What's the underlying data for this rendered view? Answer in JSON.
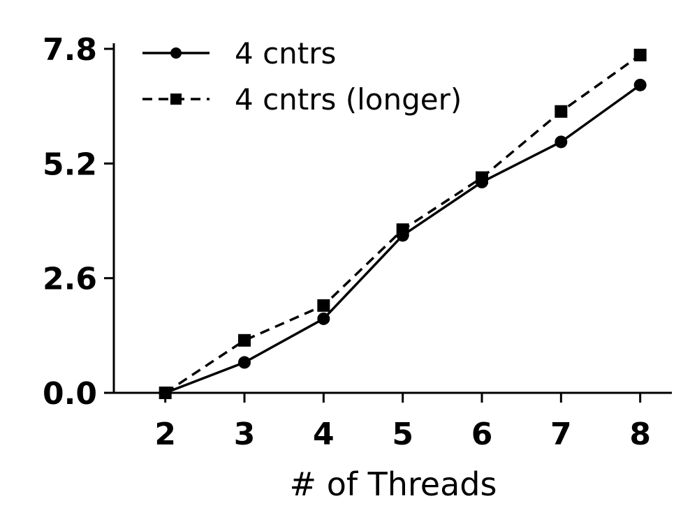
{
  "chart_data": {
    "type": "line",
    "title": "",
    "xlabel": "# of Threads",
    "ylabel": "",
    "x": [
      2,
      3,
      4,
      5,
      6,
      7,
      8
    ],
    "xlim": [
      1.35,
      8.4
    ],
    "ylim": [
      0.0,
      7.8
    ],
    "yticks": [
      "0.0",
      "2.6",
      "5.2",
      "7.8"
    ],
    "xticks": [
      "2",
      "3",
      "4",
      "5",
      "6",
      "7",
      "8"
    ],
    "legend_position": "top-left",
    "grid": false,
    "series": [
      {
        "name": "4 cntrs",
        "style": "solid",
        "marker": "circle",
        "color": "#000000",
        "values": [
          0.0,
          0.69,
          1.68,
          3.57,
          4.78,
          5.69,
          6.98
        ]
      },
      {
        "name": "4 cntrs (longer)",
        "style": "dashed",
        "marker": "square",
        "color": "#000000",
        "values": [
          0.0,
          1.19,
          1.98,
          3.7,
          4.88,
          6.38,
          7.66
        ]
      }
    ]
  }
}
